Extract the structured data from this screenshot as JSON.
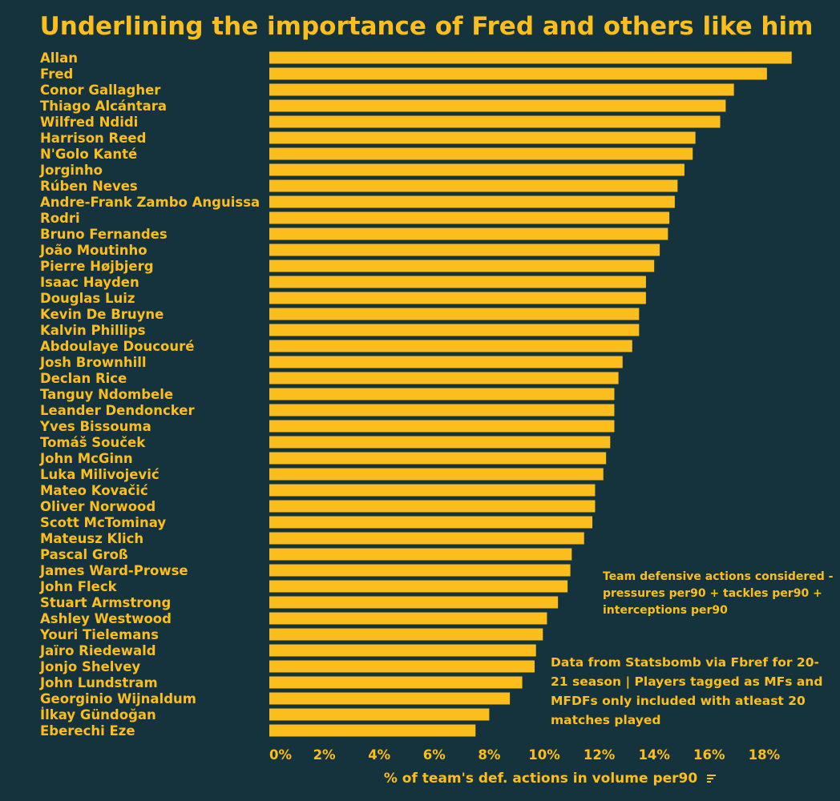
{
  "colors": {
    "background": "#15333d",
    "accent": "#fbbe1c"
  },
  "chart_data": {
    "type": "bar",
    "orientation": "horizontal",
    "title": "Underlining the importance of Fred and others like him",
    "xlabel": "% of team's def. actions in volume per90",
    "ylabel": "",
    "xlim": [
      0,
      19.5
    ],
    "x_ticks": [
      0,
      2,
      4,
      6,
      8,
      10,
      12,
      14,
      16,
      18
    ],
    "x_tick_labels": [
      "0%",
      "2%",
      "4%",
      "6%",
      "8%",
      "10%",
      "12%",
      "14%",
      "16%",
      "18%"
    ],
    "grid": false,
    "categories": [
      "Allan",
      "Fred",
      "Conor Gallagher",
      "Thiago Alcántara",
      "Wilfred Ndidi",
      "Harrison Reed",
      "N'Golo Kanté",
      "Jorginho",
      "Rúben Neves",
      "Andre-Frank Zambo Anguissa",
      "Rodri",
      "Bruno Fernandes",
      "João Moutinho",
      "Pierre Højbjerg",
      "Isaac Hayden",
      "Douglas Luiz",
      "Kevin De Bruyne",
      "Kalvin Phillips",
      "Abdoulaye Doucouré",
      "Josh Brownhill",
      "Declan Rice",
      "Tanguy Ndombele",
      "Leander Dendoncker",
      "Yves Bissouma",
      "Tomáš Souček",
      "John McGinn",
      "Luka Milivojević",
      "Mateo Kovačić",
      "Oliver Norwood",
      "Scott McTominay",
      "Mateusz Klich",
      "Pascal Groß",
      "James Ward-Prowse",
      "John Fleck",
      "Stuart Armstrong",
      "Ashley Westwood",
      "Youri Tielemans",
      "Jaïro Riedewald",
      "Jonjo Shelvey",
      "John Lundstram",
      "Georginio Wijnaldum",
      "İlkay Gündoğan",
      "Eberechi Eze"
    ],
    "values": [
      19.0,
      18.1,
      16.9,
      16.6,
      16.4,
      15.5,
      15.4,
      15.1,
      14.85,
      14.75,
      14.55,
      14.5,
      14.2,
      14.0,
      13.7,
      13.7,
      13.45,
      13.45,
      13.2,
      12.85,
      12.7,
      12.55,
      12.55,
      12.55,
      12.4,
      12.25,
      12.15,
      11.85,
      11.85,
      11.75,
      11.45,
      11.0,
      10.95,
      10.85,
      10.5,
      10.1,
      9.95,
      9.7,
      9.65,
      9.2,
      8.75,
      8.0,
      7.5
    ],
    "annotations": [
      "Team defensive actions considered - pressures per90 + tackles per90 + interceptions per90",
      "Data from Statsbomb via Fbref for 20-21 season | Players tagged as MFs and MFDFs only included with atleast 20 matches played"
    ]
  }
}
